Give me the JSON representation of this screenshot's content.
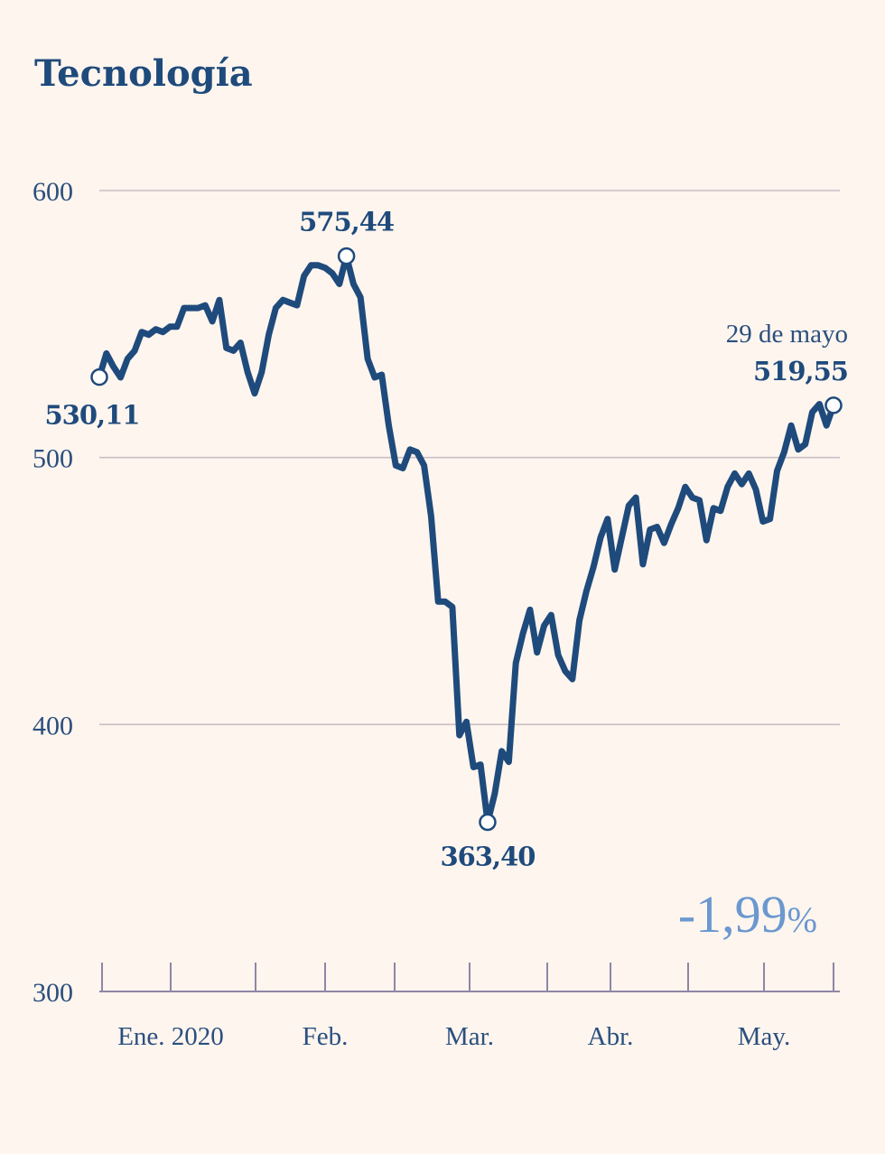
{
  "chart_data": {
    "type": "line",
    "title": "Tecnología",
    "xlabel": "",
    "ylabel": "",
    "ylim": [
      300,
      600
    ],
    "yticks": [
      300,
      400,
      500,
      600
    ],
    "yticks_labels": [
      "300",
      "400",
      "500",
      "600"
    ],
    "x_month_labels": [
      "Ene. 2020",
      "Feb.",
      "Mar.",
      "Abr.",
      "May."
    ],
    "grid": true,
    "legend": "none",
    "colors": {
      "line": "#1f4a7c",
      "change": "#6b98cf",
      "background": "#fdf5ee"
    },
    "series": [
      {
        "values": [
          530.11,
          539,
          534,
          530,
          537,
          540,
          547,
          546,
          548,
          547,
          549,
          549,
          556,
          556,
          556,
          557,
          551,
          559,
          541,
          540,
          543,
          532,
          524,
          532,
          546,
          556,
          559,
          558,
          557,
          568,
          572,
          572,
          571,
          569,
          565,
          575.44,
          565,
          560,
          537,
          530,
          531,
          512,
          497,
          496,
          503,
          502,
          497,
          478,
          446,
          446,
          444,
          396,
          401,
          384,
          385,
          363.4,
          374,
          390,
          386,
          423,
          434,
          443,
          427,
          437,
          441,
          426,
          420,
          417,
          439,
          450,
          459,
          470,
          477,
          458,
          470,
          482,
          485,
          460,
          473,
          474,
          468,
          475,
          481,
          489,
          485,
          484,
          469,
          481,
          480,
          489,
          494,
          490,
          494,
          488,
          476,
          477,
          495,
          502,
          512,
          503,
          505,
          517,
          520,
          512,
          519.55
        ]
      }
    ],
    "annotations": [
      {
        "label": "530,11",
        "index": 0,
        "value": 530.11
      },
      {
        "label": "575,44",
        "index": 35,
        "value": 575.44
      },
      {
        "label": "363,40",
        "index": 55,
        "value": 363.4
      },
      {
        "label": "519,55",
        "index": 104,
        "value": 519.55,
        "note": "29 de mayo"
      }
    ],
    "change": "-1,99",
    "change_unit": "%"
  }
}
